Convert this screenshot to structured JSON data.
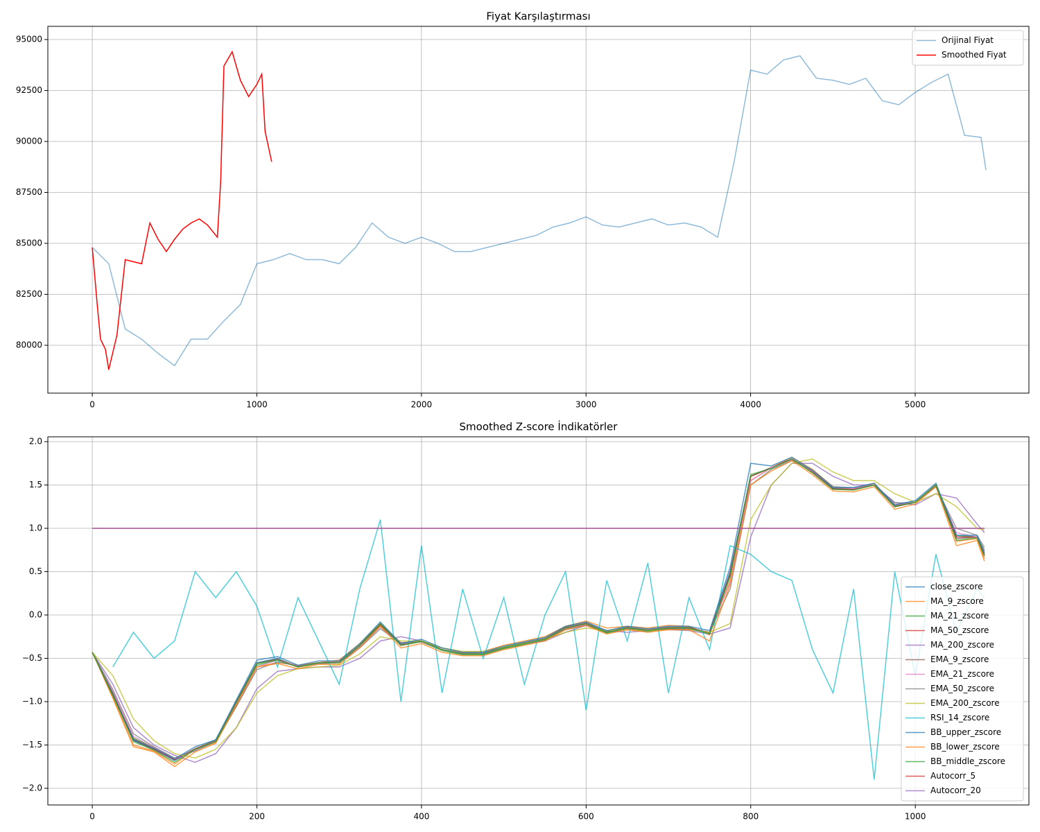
{
  "chart_data": [
    {
      "type": "line",
      "title": "Fiyat Karşılaştırması",
      "xlim": [
        -270,
        5691
      ],
      "ylim": [
        77653,
        95646
      ],
      "xticks": [
        0,
        1000,
        2000,
        3000,
        4000,
        5000
      ],
      "yticks": [
        80000,
        82500,
        85000,
        87500,
        90000,
        92500,
        95000
      ],
      "grid": true,
      "legend": "upper right",
      "series": [
        {
          "name": "Orijinal Fiyat",
          "color": "#1f77b4",
          "opacity": 0.5,
          "x": [
            0,
            100,
            200,
            300,
            400,
            500,
            600,
            700,
            800,
            900,
            1000,
            1100,
            1200,
            1300,
            1400,
            1500,
            1600,
            1700,
            1800,
            1900,
            2000,
            2100,
            2200,
            2300,
            2400,
            2500,
            2600,
            2700,
            2800,
            2900,
            3000,
            3100,
            3200,
            3300,
            3400,
            3500,
            3600,
            3700,
            3800,
            3900,
            4000,
            4100,
            4200,
            4300,
            4400,
            4500,
            4600,
            4700,
            4800,
            4900,
            5000,
            5100,
            5200,
            5300,
            5400,
            5430
          ],
          "values": [
            84800,
            84000,
            80800,
            80300,
            79600,
            79000,
            80300,
            80300,
            81200,
            82000,
            84000,
            84200,
            84500,
            84200,
            84200,
            84000,
            84800,
            86000,
            85300,
            85000,
            85300,
            85000,
            84600,
            84600,
            84800,
            85000,
            85200,
            85400,
            85800,
            86000,
            86300,
            85900,
            85800,
            86000,
            86200,
            85900,
            86000,
            85800,
            85300,
            89000,
            93500,
            93300,
            94000,
            94200,
            93100,
            93000,
            92800,
            93100,
            92000,
            91800,
            92400,
            92900,
            93300,
            90300,
            90200,
            88600
          ]
        },
        {
          "name": "Smoothed Fiyat",
          "color": "#ff0000",
          "opacity": 1,
          "x": [
            0,
            30,
            50,
            80,
            100,
            150,
            200,
            250,
            300,
            350,
            400,
            450,
            500,
            550,
            600,
            650,
            700,
            760,
            780,
            800,
            850,
            900,
            950,
            1000,
            1030,
            1050,
            1090
          ],
          "values": [
            84800,
            82000,
            80300,
            79800,
            78800,
            80500,
            84200,
            84100,
            84000,
            86000,
            85200,
            84600,
            85200,
            85700,
            86000,
            86200,
            85900,
            85300,
            88000,
            93700,
            94400,
            93000,
            92200,
            92800,
            93300,
            90500,
            89000
          ]
        }
      ]
    },
    {
      "type": "line",
      "title": "Smoothed Z-score İndikatörler",
      "xlim": [
        -54,
        1138
      ],
      "ylim": [
        -2.192,
        2.056
      ],
      "xticks": [
        0,
        200,
        400,
        600,
        800,
        1000
      ],
      "yticks": [
        {
          "value": -2.0,
          "label": "−2.0"
        },
        {
          "value": -1.5,
          "label": "−1.5"
        },
        {
          "value": -1.0,
          "label": "−1.0"
        },
        {
          "value": -0.5,
          "label": "−0.5"
        },
        {
          "value": 0.0,
          "label": "0.0"
        },
        0.5,
        {
          "value": 1.0,
          "label": "1.0"
        },
        1.5,
        {
          "value": 2.0,
          "label": "2.0"
        }
      ],
      "grid": true,
      "legend": "lower right",
      "x": [
        0,
        25,
        50,
        75,
        100,
        125,
        150,
        175,
        200,
        225,
        250,
        275,
        300,
        325,
        350,
        375,
        400,
        425,
        450,
        475,
        500,
        525,
        550,
        575,
        600,
        625,
        650,
        675,
        700,
        725,
        750,
        775,
        800,
        825,
        850,
        875,
        900,
        925,
        950,
        975,
        1000,
        1025,
        1050,
        1075,
        1084
      ],
      "series": [
        {
          "name": "close_zscore",
          "color": "#1f77b4",
          "values": [
            -0.43,
            -0.9,
            -1.45,
            -1.55,
            -1.68,
            -1.55,
            -1.45,
            -1.0,
            -0.55,
            -0.5,
            -0.6,
            -0.55,
            -0.55,
            -0.35,
            -0.1,
            -0.35,
            -0.3,
            -0.4,
            -0.45,
            -0.45,
            -0.38,
            -0.33,
            -0.28,
            -0.15,
            -0.1,
            -0.2,
            -0.15,
            -0.18,
            -0.15,
            -0.15,
            -0.2,
            0.5,
            1.6,
            1.7,
            1.8,
            1.65,
            1.45,
            1.45,
            1.5,
            1.25,
            1.3,
            1.5,
            0.9,
            0.9,
            0.7
          ]
        },
        {
          "name": "MA_9_zscore",
          "color": "#ff7f0e",
          "values": [
            -0.43,
            -0.95,
            -1.5,
            -1.57,
            -1.72,
            -1.55,
            -1.47,
            -1.05,
            -0.6,
            -0.55,
            -0.58,
            -0.55,
            -0.52,
            -0.33,
            -0.1,
            -0.32,
            -0.3,
            -0.38,
            -0.43,
            -0.42,
            -0.35,
            -0.3,
            -0.25,
            -0.13,
            -0.07,
            -0.15,
            -0.13,
            -0.15,
            -0.12,
            -0.13,
            -0.23,
            0.4,
            1.55,
            1.7,
            1.82,
            1.68,
            1.48,
            1.45,
            1.52,
            1.27,
            1.3,
            1.5,
            0.85,
            0.88,
            0.65
          ]
        },
        {
          "name": "MA_21_zscore",
          "color": "#2ca02c",
          "values": [
            -0.43,
            -0.92,
            -1.42,
            -1.53,
            -1.66,
            -1.55,
            -1.44,
            -1.02,
            -0.58,
            -0.52,
            -0.6,
            -0.56,
            -0.55,
            -0.36,
            -0.12,
            -0.35,
            -0.31,
            -0.41,
            -0.46,
            -0.46,
            -0.39,
            -0.34,
            -0.29,
            -0.16,
            -0.11,
            -0.21,
            -0.16,
            -0.19,
            -0.16,
            -0.16,
            -0.21,
            0.45,
            1.6,
            1.7,
            1.8,
            1.65,
            1.46,
            1.45,
            1.5,
            1.25,
            1.3,
            1.5,
            0.92,
            0.9,
            0.75
          ]
        },
        {
          "name": "MA_50_zscore",
          "color": "#d62728",
          "values": [
            -0.43,
            -0.91,
            -1.44,
            -1.55,
            -1.67,
            -1.55,
            -1.45,
            -1.0,
            -0.56,
            -0.51,
            -0.6,
            -0.55,
            -0.55,
            -0.35,
            -0.11,
            -0.35,
            -0.3,
            -0.4,
            -0.45,
            -0.45,
            -0.38,
            -0.33,
            -0.28,
            -0.15,
            -0.1,
            -0.2,
            -0.15,
            -0.18,
            -0.15,
            -0.15,
            -0.2,
            0.48,
            1.6,
            1.7,
            1.8,
            1.65,
            1.45,
            1.45,
            1.5,
            1.25,
            1.3,
            1.5,
            0.9,
            0.9,
            0.7
          ]
        },
        {
          "name": "MA_200_zscore",
          "color": "#9467bd",
          "values": [
            -0.43,
            -0.8,
            -1.3,
            -1.5,
            -1.62,
            -1.7,
            -1.6,
            -1.3,
            -0.85,
            -0.65,
            -0.62,
            -0.6,
            -0.6,
            -0.5,
            -0.3,
            -0.25,
            -0.3,
            -0.4,
            -0.45,
            -0.45,
            -0.38,
            -0.33,
            -0.3,
            -0.2,
            -0.12,
            -0.18,
            -0.2,
            -0.18,
            -0.17,
            -0.18,
            -0.22,
            -0.15,
            0.9,
            1.5,
            1.75,
            1.75,
            1.6,
            1.5,
            1.5,
            1.3,
            1.27,
            1.4,
            1.35,
            1.05,
            0.95
          ]
        },
        {
          "name": "EMA_9_zscore",
          "color": "#8c564b",
          "values": [
            -0.43,
            -0.9,
            -1.43,
            -1.54,
            -1.67,
            -1.54,
            -1.45,
            -1.01,
            -0.56,
            -0.51,
            -0.59,
            -0.55,
            -0.54,
            -0.35,
            -0.1,
            -0.34,
            -0.3,
            -0.4,
            -0.44,
            -0.44,
            -0.37,
            -0.32,
            -0.27,
            -0.14,
            -0.09,
            -0.19,
            -0.14,
            -0.17,
            -0.14,
            -0.14,
            -0.21,
            0.47,
            1.6,
            1.7,
            1.8,
            1.66,
            1.46,
            1.45,
            1.5,
            1.26,
            1.3,
            1.5,
            0.88,
            0.9,
            0.68
          ]
        },
        {
          "name": "EMA_21_zscore",
          "color": "#e377c2",
          "values": [
            -0.43,
            -0.88,
            -1.4,
            -1.53,
            -1.66,
            -1.56,
            -1.45,
            -1.03,
            -0.6,
            -0.52,
            -0.59,
            -0.56,
            -0.55,
            -0.37,
            -0.14,
            -0.33,
            -0.31,
            -0.4,
            -0.45,
            -0.45,
            -0.38,
            -0.33,
            -0.28,
            -0.16,
            -0.11,
            -0.19,
            -0.16,
            -0.18,
            -0.16,
            -0.16,
            -0.2,
            0.38,
            1.55,
            1.7,
            1.79,
            1.66,
            1.47,
            1.46,
            1.5,
            1.27,
            1.3,
            1.49,
            0.95,
            0.9,
            0.74
          ]
        },
        {
          "name": "EMA_50_zscore",
          "color": "#7f7f7f",
          "values": [
            -0.43,
            -0.86,
            -1.37,
            -1.52,
            -1.65,
            -1.57,
            -1.46,
            -1.06,
            -0.63,
            -0.54,
            -0.59,
            -0.56,
            -0.55,
            -0.38,
            -0.16,
            -0.32,
            -0.31,
            -0.4,
            -0.45,
            -0.45,
            -0.38,
            -0.33,
            -0.28,
            -0.17,
            -0.12,
            -0.19,
            -0.17,
            -0.18,
            -0.16,
            -0.16,
            -0.2,
            0.3,
            1.5,
            1.68,
            1.78,
            1.67,
            1.48,
            1.47,
            1.5,
            1.29,
            1.3,
            1.48,
            1.0,
            0.92,
            0.78
          ]
        },
        {
          "name": "EMA_200_zscore",
          "color": "#bcbd22",
          "values": [
            -0.43,
            -0.7,
            -1.2,
            -1.45,
            -1.6,
            -1.65,
            -1.55,
            -1.3,
            -0.9,
            -0.7,
            -0.62,
            -0.6,
            -0.58,
            -0.45,
            -0.25,
            -0.3,
            -0.3,
            -0.38,
            -0.42,
            -0.42,
            -0.37,
            -0.33,
            -0.28,
            -0.2,
            -0.15,
            -0.18,
            -0.17,
            -0.18,
            -0.17,
            -0.17,
            -0.2,
            -0.1,
            1.1,
            1.5,
            1.75,
            1.8,
            1.65,
            1.55,
            1.55,
            1.4,
            1.3,
            1.4,
            1.25,
            1.0,
            0.98
          ]
        },
        {
          "name": "RSI_14_zscore",
          "color": "#17becf",
          "values": [
            null,
            -0.6,
            -0.2,
            -0.5,
            -0.3,
            0.5,
            0.2,
            0.5,
            0.1,
            -0.6,
            0.2,
            -0.3,
            -0.8,
            0.3,
            1.1,
            -1.0,
            0.8,
            -0.9,
            0.3,
            -0.5,
            0.2,
            -0.8,
            0.0,
            0.5,
            -1.1,
            0.4,
            -0.3,
            0.6,
            -0.9,
            0.2,
            -0.4,
            0.8,
            0.7,
            0.5,
            0.4,
            -0.4,
            -0.9,
            0.3,
            -1.9,
            0.5,
            -0.7,
            0.7,
            -0.2,
            0.3,
            0.2
          ]
        },
        {
          "name": "BB_upper_zscore",
          "color": "#1f77b4",
          "values": [
            -0.43,
            -0.92,
            -1.44,
            -1.54,
            -1.66,
            -1.52,
            -1.44,
            -0.98,
            -0.52,
            -0.48,
            -0.58,
            -0.53,
            -0.53,
            -0.33,
            -0.08,
            -0.33,
            -0.28,
            -0.38,
            -0.43,
            -0.43,
            -0.36,
            -0.31,
            -0.26,
            -0.13,
            -0.08,
            -0.18,
            -0.13,
            -0.16,
            -0.13,
            -0.13,
            -0.18,
            0.55,
            1.75,
            1.72,
            1.82,
            1.67,
            1.47,
            1.47,
            1.52,
            1.27,
            1.32,
            1.52,
            0.92,
            0.92,
            0.72
          ]
        },
        {
          "name": "BB_lower_zscore",
          "color": "#ff7f0e",
          "values": [
            -0.43,
            -0.96,
            -1.52,
            -1.58,
            -1.75,
            -1.58,
            -1.48,
            -1.04,
            -0.6,
            -0.56,
            -0.62,
            -0.57,
            -0.57,
            -0.38,
            -0.13,
            -0.38,
            -0.33,
            -0.43,
            -0.47,
            -0.47,
            -0.4,
            -0.35,
            -0.3,
            -0.17,
            -0.12,
            -0.22,
            -0.17,
            -0.2,
            -0.17,
            -0.17,
            -0.3,
            0.35,
            1.5,
            1.66,
            1.78,
            1.62,
            1.43,
            1.42,
            1.48,
            1.22,
            1.28,
            1.48,
            0.8,
            0.86,
            0.62
          ]
        },
        {
          "name": "BB_middle_zscore",
          "color": "#2ca02c",
          "values": [
            -0.43,
            -0.93,
            -1.46,
            -1.56,
            -1.7,
            -1.55,
            -1.46,
            -1.01,
            -0.56,
            -0.52,
            -0.6,
            -0.55,
            -0.55,
            -0.35,
            -0.1,
            -0.35,
            -0.3,
            -0.4,
            -0.45,
            -0.45,
            -0.38,
            -0.33,
            -0.28,
            -0.15,
            -0.1,
            -0.2,
            -0.15,
            -0.18,
            -0.15,
            -0.15,
            -0.22,
            0.45,
            1.62,
            1.69,
            1.8,
            1.64,
            1.45,
            1.44,
            1.5,
            1.25,
            1.3,
            1.5,
            0.86,
            0.89,
            0.68
          ]
        },
        {
          "name": "Autocorr_5",
          "color": "#d62728",
          "values": [
            1,
            1,
            1,
            1,
            1,
            1,
            1,
            1,
            1,
            1,
            1,
            1,
            1,
            1,
            1,
            1,
            1,
            1,
            1,
            1,
            1,
            1,
            1,
            1,
            1,
            1,
            1,
            1,
            1,
            1,
            1,
            1,
            1,
            1,
            1,
            1,
            1,
            1,
            1,
            1,
            1,
            1,
            1,
            1,
            1
          ]
        },
        {
          "name": "Autocorr_20",
          "color": "#9467bd",
          "values": [
            1,
            1,
            1,
            1,
            1,
            1,
            1,
            1,
            1,
            1,
            1,
            1,
            1,
            1,
            1,
            1,
            1,
            1,
            1,
            1,
            1,
            1,
            1,
            1,
            1,
            1,
            1,
            1,
            1,
            1,
            1,
            1,
            1,
            1,
            1,
            1,
            1,
            1,
            1,
            1,
            1,
            1,
            1,
            1,
            1
          ]
        }
      ]
    }
  ]
}
